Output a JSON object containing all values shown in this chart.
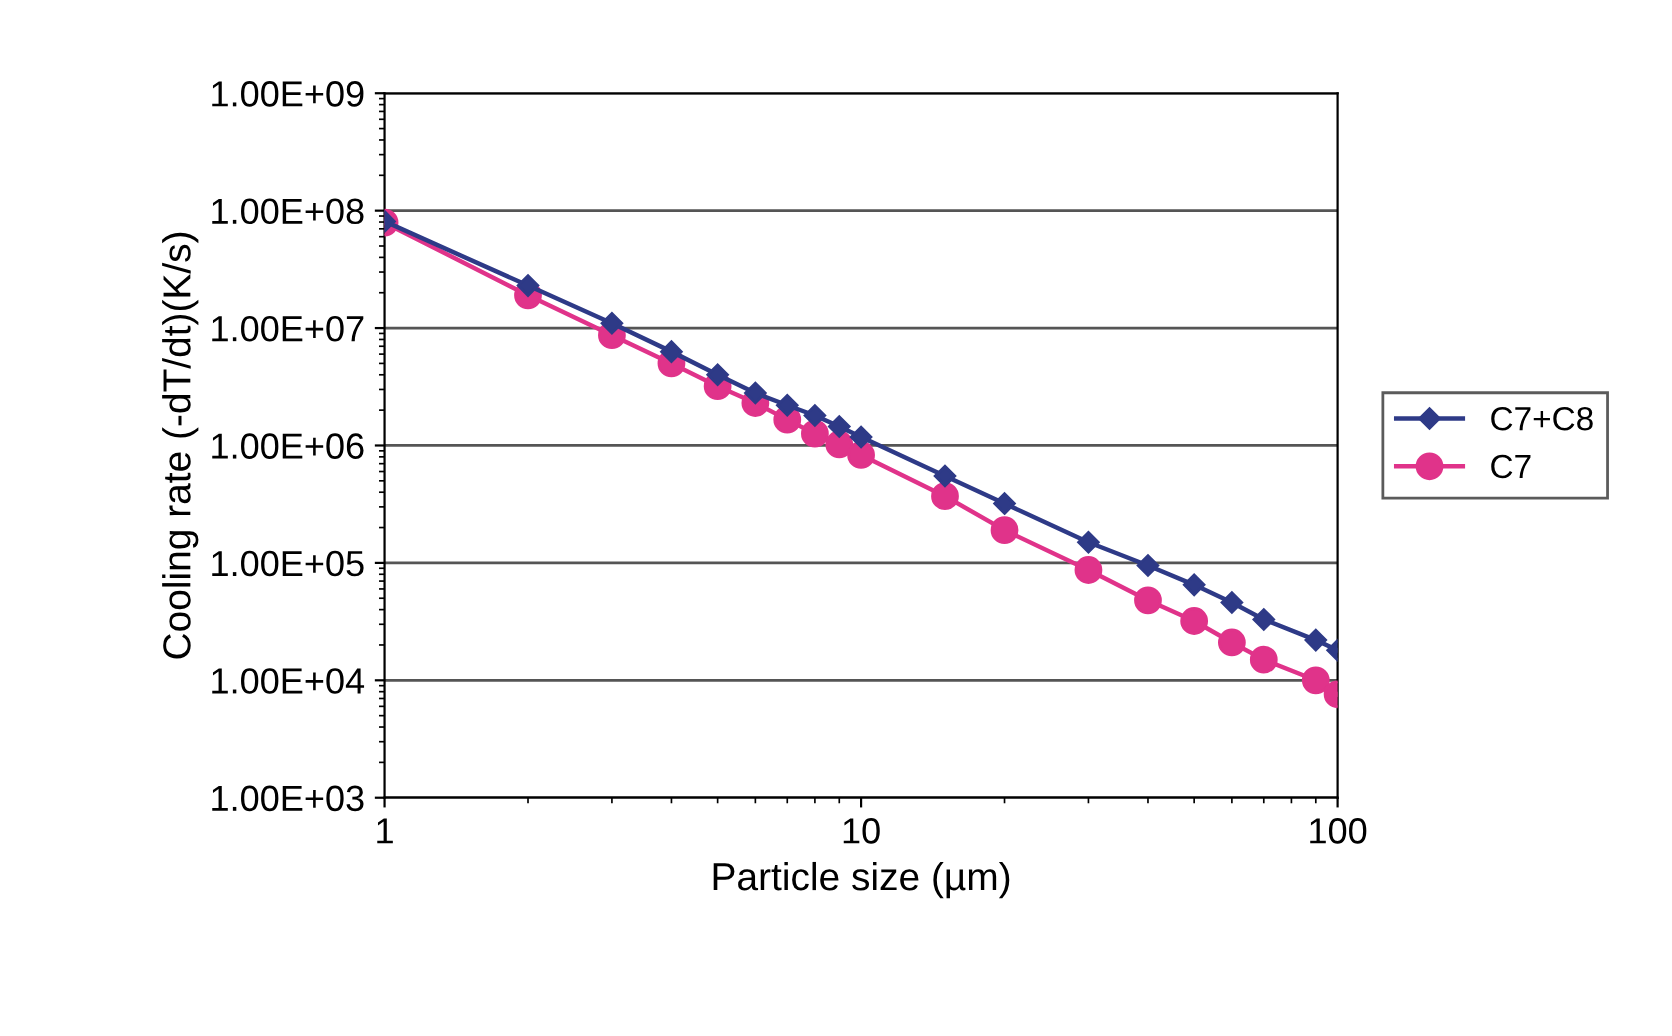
{
  "chart_data": {
    "type": "line",
    "xlabel": "Particle size (µm)",
    "ylabel": "Cooling rate (-dT/dt)(K/s)",
    "log": "xy",
    "x": [
      1,
      2,
      3,
      4,
      5,
      6,
      7,
      8,
      9,
      10,
      15,
      20,
      30,
      40,
      50,
      60,
      70,
      90,
      100
    ],
    "series": [
      {
        "name": "C7+C8",
        "color": "#2e3a87",
        "marker": "diamond",
        "values": [
          81000000,
          23000000,
          11000000,
          6300000,
          4000000,
          2800000,
          2200000,
          1800000,
          1450000,
          1180000,
          550000,
          320000,
          150000,
          95000,
          65000,
          46000,
          33000,
          22000,
          18000
        ]
      },
      {
        "name": "C7",
        "color": "#e0338a",
        "marker": "circle",
        "values": [
          79000000,
          19000000,
          8700000,
          5000000,
          3200000,
          2300000,
          1660000,
          1260000,
          1020000,
          830000,
          370000,
          190000,
          87000,
          48000,
          32000,
          21000,
          15000,
          10000,
          7600
        ]
      }
    ],
    "xlim": [
      1,
      100
    ],
    "xticks": [
      1,
      10,
      100
    ],
    "ylim": [
      1000,
      1000000000
    ],
    "yticks": [
      {
        "value": 1000,
        "label": "1.00E+03"
      },
      {
        "value": 10000,
        "label": "1.00E+04"
      },
      {
        "value": 100000,
        "label": "1.00E+05"
      },
      {
        "value": 1000000,
        "label": "1.00E+06"
      },
      {
        "value": 10000000,
        "label": "1.00E+07"
      },
      {
        "value": 100000000,
        "label": "1.00E+08"
      },
      {
        "value": 1000000000,
        "label": "1.00E+09"
      }
    ],
    "grid": "y",
    "legend": "right"
  }
}
